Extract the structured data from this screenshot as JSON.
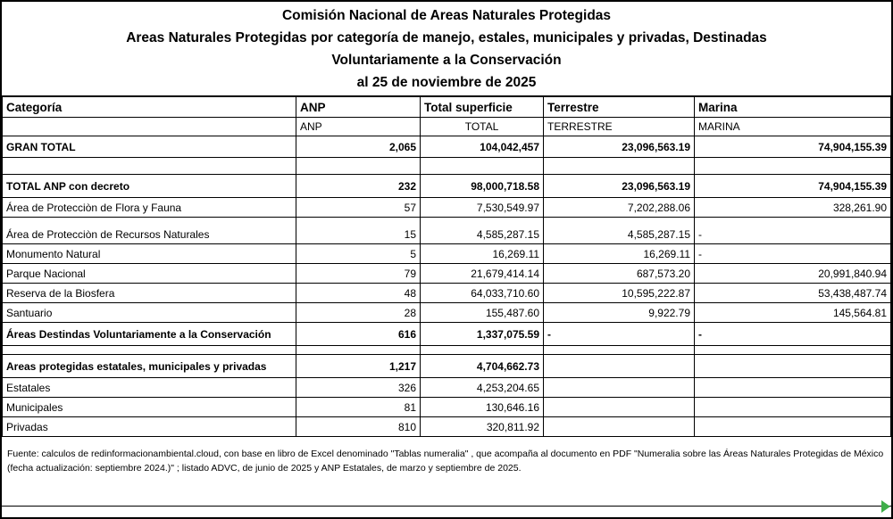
{
  "titles": [
    "Comisión Nacional de Areas Naturales Protegidas",
    "Areas Naturales Protegidas por categoría de manejo, estales, municipales y privadas, Destinadas",
    "Voluntariamente a la Conservación",
    "al 25 de noviembre de 2025"
  ],
  "table": {
    "header": [
      "Categoría",
      "ANP",
      "Total superficie",
      "Terrestre",
      "Marina"
    ],
    "subheader": [
      "",
      "ANP",
      "TOTAL",
      "TERRESTRE",
      "MARINA"
    ],
    "rows": [
      {
        "type": "grand",
        "label": "GRAN TOTAL",
        "anp": "2,065",
        "total": "104,042,457",
        "terrestre": "23,096,563.19",
        "marina": "74,904,155.39"
      },
      {
        "type": "spacer",
        "label": "",
        "anp": "",
        "total": "",
        "terrestre": "",
        "marina": ""
      },
      {
        "type": "subtotal",
        "label": "TOTAL ANP con decreto",
        "anp": "232",
        "total": "98,000,718.58",
        "terrestre": "23,096,563.19",
        "marina": "74,904,155.39"
      },
      {
        "type": "detail",
        "label": "Área de Protecciòn de Flora y Fauna",
        "anp": "57",
        "total": "7,530,549.97",
        "terrestre": "7,202,288.06",
        "marina": "328,261.90"
      },
      {
        "type": "detail-tall",
        "label": "Área de Protecciòn de Recursos Naturales",
        "anp": "15",
        "total": "4,585,287.15",
        "terrestre": "4,585,287.15",
        "marina": "-"
      },
      {
        "type": "detail",
        "label": "Monumento Natural",
        "anp": "5",
        "total": "16,269.11",
        "terrestre": "16,269.11",
        "marina": "-"
      },
      {
        "type": "detail",
        "label": "Parque Nacional",
        "anp": "79",
        "total": "21,679,414.14",
        "terrestre": "687,573.20",
        "marina": "20,991,840.94"
      },
      {
        "type": "detail",
        "label": "Reserva de la Biosfera",
        "anp": "48",
        "total": "64,033,710.60",
        "terrestre": "10,595,222.87",
        "marina": "53,438,487.74"
      },
      {
        "type": "detail",
        "label": "Santuario",
        "anp": "28",
        "total": "155,487.60",
        "terrestre": "9,922.79",
        "marina": "145,564.81"
      },
      {
        "type": "subtotal",
        "label": "Áreas Destindas Voluntariamente a la Conservación",
        "anp": "616",
        "total": "1,337,075.59",
        "terrestre": "-",
        "marina": "-"
      },
      {
        "type": "spacer-small",
        "label": "",
        "anp": "",
        "total": "",
        "terrestre": "",
        "marina": ""
      },
      {
        "type": "subtotal",
        "label": "Areas protegidas estatales, municipales y privadas",
        "anp": "1,217",
        "total": "4,704,662.73",
        "terrestre": "",
        "marina": ""
      },
      {
        "type": "detail",
        "label": "Estatales",
        "anp": "326",
        "total": "4,253,204.65",
        "terrestre": "",
        "marina": ""
      },
      {
        "type": "detail",
        "label": "Municipales",
        "anp": "81",
        "total": "130,646.16",
        "terrestre": "",
        "marina": ""
      },
      {
        "type": "detail",
        "label": "Privadas",
        "anp": "810",
        "total": "320,811.92",
        "terrestre": "",
        "marina": ""
      }
    ]
  },
  "footer": {
    "note": "Fuente: calculos de redinformacionambiental.cloud, con base en libro de Excel denominado \"Tablas numeralia\" , que acompaña al documento en PDF \"Numeralia sobre las Áreas Naturales Protegidas de México (fecha actualización: septiembre 2024.)\" ; listado ADVC, de junio de 2025 y ANP Estatales, de marzo y septiembre de 2025."
  },
  "colors": {
    "accent_green": "#3fae49",
    "border": "#000000",
    "background": "#ffffff"
  }
}
